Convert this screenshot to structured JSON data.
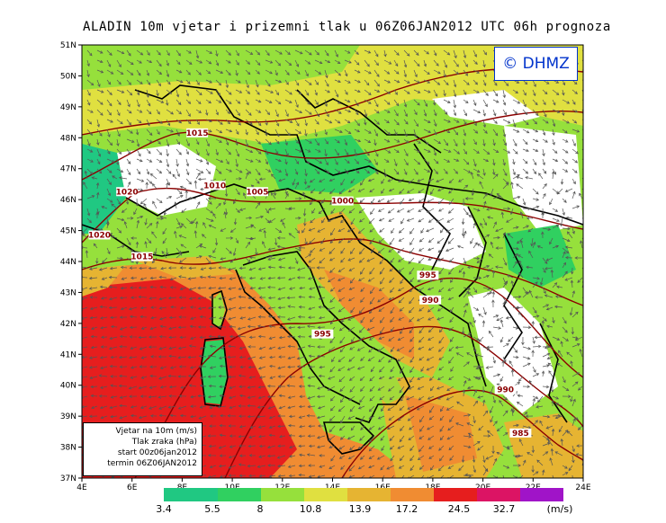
{
  "title": "ALADIN 10m vjetar i prizemni tlak u 06Z06JAN2012 UTC 06h prognoza",
  "copyright": "© DHMZ",
  "legend": {
    "line1": "Vjetar na 10m (m/s)",
    "line2": "Tlak zraka (hPa)",
    "line3": "start 00z06jan2012",
    "line4": "termin 06Z06JAN2012"
  },
  "lat_labels": [
    "51N",
    "50N",
    "49N",
    "48N",
    "47N",
    "46N",
    "45N",
    "44N",
    "43N",
    "42N",
    "41N",
    "40N",
    "39N",
    "38N",
    "37N"
  ],
  "lon_labels": [
    "4E",
    "6E",
    "8E",
    "10E",
    "12E",
    "14E",
    "16E",
    "18E",
    "20E",
    "22E",
    "24E"
  ],
  "isobars": [
    {
      "value": "1015",
      "lon": 8.6,
      "lat": 48.1
    },
    {
      "value": "1020",
      "lon": 5.8,
      "lat": 46.2
    },
    {
      "value": "1010",
      "lon": 9.3,
      "lat": 46.4
    },
    {
      "value": "1005",
      "lon": 11.0,
      "lat": 46.2
    },
    {
      "value": "1000",
      "lon": 14.4,
      "lat": 45.9
    },
    {
      "value": "1020",
      "lon": 4.7,
      "lat": 44.8
    },
    {
      "value": "1015",
      "lon": 6.4,
      "lat": 44.1
    },
    {
      "value": "995",
      "lon": 17.8,
      "lat": 43.5
    },
    {
      "value": "990",
      "lon": 17.9,
      "lat": 42.7
    },
    {
      "value": "995",
      "lon": 13.6,
      "lat": 41.6
    },
    {
      "value": "990",
      "lon": 20.9,
      "lat": 39.8
    },
    {
      "value": "985",
      "lon": 21.5,
      "lat": 38.4
    }
  ],
  "colorbar": {
    "unit": "(m/s)",
    "colors": [
      "#20c882",
      "#30d060",
      "#96e03c",
      "#e0e040",
      "#e6b432",
      "#f08c32",
      "#e61e1e",
      "#dc1464",
      "#a014c8"
    ],
    "labels": [
      "3.4",
      "5.5",
      "8",
      "10.8",
      "13.9",
      "17.2",
      "24.5",
      "32.7"
    ]
  },
  "colors": {
    "isobar": "#8b0000",
    "border": "#000000",
    "wind_arrow": "#555555"
  }
}
